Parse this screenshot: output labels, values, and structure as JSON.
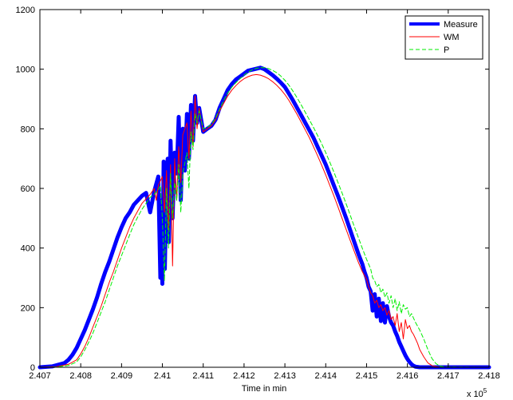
{
  "chart_data": {
    "type": "line",
    "title": "",
    "xlabel": "Time in min",
    "ylabel": "",
    "x_exponent_label": "x 10",
    "x_exponent_power": "5",
    "xlim": [
      2.407,
      2.418
    ],
    "ylim": [
      0,
      1200
    ],
    "x_ticks": [
      2.407,
      2.408,
      2.409,
      2.41,
      2.411,
      2.412,
      2.413,
      2.414,
      2.415,
      2.416,
      2.417,
      2.418
    ],
    "x_tick_labels": [
      "2.407",
      "2.408",
      "2.409",
      "2.41",
      "2.411",
      "2.412",
      "2.413",
      "2.414",
      "2.415",
      "2.416",
      "2.417",
      "2.418"
    ],
    "y_ticks": [
      0,
      200,
      400,
      600,
      800,
      1000,
      1200
    ],
    "y_tick_labels": [
      "0",
      "200",
      "400",
      "600",
      "800",
      "1000",
      "1200"
    ],
    "grid": false,
    "legend_position": "top-right",
    "series": [
      {
        "name": "Measure",
        "color": "#0000ff",
        "style": "solid",
        "x": [
          2.407,
          2.4073,
          2.4076,
          2.4077,
          2.4078,
          2.4079,
          2.408,
          2.4081,
          2.4082,
          2.4083,
          2.4084,
          2.4085,
          2.4086,
          2.4087,
          2.4088,
          2.4089,
          2.409,
          2.4091,
          2.4092,
          2.4093,
          2.4094,
          2.4095,
          2.4096,
          2.4097,
          2.4098,
          2.4099,
          2.40995,
          2.40998,
          2.41,
          2.41003,
          2.41006,
          2.4101,
          2.41013,
          2.41016,
          2.4102,
          2.41025,
          2.4103,
          2.41035,
          2.4104,
          2.41045,
          2.4105,
          2.41055,
          2.4106,
          2.41065,
          2.4107,
          2.41075,
          2.4108,
          2.41085,
          2.4109,
          2.411,
          2.4111,
          2.4112,
          2.4113,
          2.4114,
          2.4115,
          2.4116,
          2.4117,
          2.4118,
          2.4119,
          2.412,
          2.4121,
          2.41225,
          2.4124,
          2.4125,
          2.4126,
          2.4127,
          2.4128,
          2.4129,
          2.413,
          2.4131,
          2.4132,
          2.4133,
          2.4134,
          2.4135,
          2.4136,
          2.4137,
          2.4138,
          2.4139,
          2.414,
          2.4141,
          2.4142,
          2.4143,
          2.4144,
          2.4145,
          2.4146,
          2.4147,
          2.4148,
          2.4149,
          2.41495,
          2.415,
          2.41505,
          2.4151,
          2.41515,
          2.4152,
          2.41525,
          2.4153,
          2.41535,
          2.4154,
          2.41545,
          2.4155,
          2.41555,
          2.4156,
          2.41565,
          2.4157,
          2.41575,
          2.4158,
          2.41585,
          2.4159,
          2.41595,
          2.416,
          2.41605,
          2.4161,
          2.41615,
          2.4162,
          2.41625,
          2.4163,
          2.41635,
          2.4164,
          2.41645,
          2.4165,
          2.4166,
          2.4167,
          2.4168,
          2.418
        ],
        "y": [
          0,
          3,
          14,
          25,
          42,
          65,
          95,
          125,
          160,
          195,
          235,
          280,
          320,
          355,
          395,
          435,
          470,
          500,
          520,
          545,
          560,
          575,
          585,
          520,
          590,
          640,
          300,
          560,
          280,
          690,
          330,
          640,
          700,
          420,
          760,
          500,
          720,
          650,
          840,
          560,
          800,
          660,
          850,
          700,
          880,
          760,
          910,
          820,
          870,
          790,
          800,
          810,
          830,
          870,
          900,
          930,
          950,
          965,
          975,
          985,
          995,
          1000,
          1005,
          1000,
          990,
          980,
          968,
          955,
          940,
          918,
          895,
          870,
          845,
          820,
          795,
          770,
          740,
          710,
          680,
          645,
          610,
          575,
          538,
          500,
          460,
          420,
          380,
          345,
          320,
          300,
          270,
          255,
          190,
          245,
          170,
          230,
          155,
          215,
          150,
          205,
          170,
          150,
          140,
          120,
          105,
          85,
          70,
          55,
          40,
          28,
          18,
          10,
          5,
          2,
          1,
          0,
          0,
          0,
          0,
          0,
          0,
          0,
          0,
          0
        ],
        "width": 5
      },
      {
        "name": "WM",
        "color": "#ff0000",
        "style": "solid",
        "x": [
          2.407,
          2.4074,
          2.4077,
          2.4079,
          2.408,
          2.4081,
          2.4082,
          2.4083,
          2.4084,
          2.4085,
          2.4086,
          2.4087,
          2.4088,
          2.4089,
          2.409,
          2.4091,
          2.4092,
          2.4093,
          2.4094,
          2.4095,
          2.4096,
          2.4097,
          2.4098,
          2.40985,
          2.4099,
          2.41,
          2.41005,
          2.4101,
          2.41015,
          2.4102,
          2.41025,
          2.4103,
          2.41035,
          2.4104,
          2.41045,
          2.4105,
          2.4106,
          2.41065,
          2.4107,
          2.41075,
          2.4108,
          2.41085,
          2.4109,
          2.411,
          2.4111,
          2.4112,
          2.4113,
          2.4114,
          2.4115,
          2.4116,
          2.4117,
          2.4118,
          2.4119,
          2.412,
          2.4121,
          2.4122,
          2.4123,
          2.4124,
          2.4125,
          2.4126,
          2.4127,
          2.4128,
          2.4129,
          2.413,
          2.4131,
          2.4132,
          2.4133,
          2.4134,
          2.4135,
          2.4136,
          2.4137,
          2.4138,
          2.4139,
          2.414,
          2.4141,
          2.4142,
          2.4143,
          2.4144,
          2.4145,
          2.4146,
          2.4147,
          2.4148,
          2.4149,
          2.415,
          2.41505,
          2.4151,
          2.41515,
          2.4152,
          2.41525,
          2.4153,
          2.41535,
          2.4154,
          2.41545,
          2.4155,
          2.41555,
          2.4156,
          2.41565,
          2.4157,
          2.41575,
          2.4158,
          2.41585,
          2.4159,
          2.41595,
          2.416,
          2.41605,
          2.4161,
          2.41615,
          2.4162,
          2.41625,
          2.4163,
          2.4164,
          2.4165,
          2.4166,
          2.4167,
          2.4168,
          2.418
        ],
        "y": [
          0,
          2,
          10,
          25,
          45,
          70,
          100,
          135,
          170,
          205,
          245,
          285,
          320,
          360,
          400,
          435,
          470,
          500,
          525,
          550,
          565,
          580,
          600,
          560,
          610,
          640,
          520,
          660,
          460,
          680,
          340,
          700,
          560,
          740,
          620,
          780,
          820,
          700,
          860,
          740,
          910,
          800,
          870,
          790,
          800,
          810,
          830,
          860,
          885,
          910,
          930,
          945,
          958,
          968,
          975,
          980,
          982,
          980,
          975,
          968,
          958,
          946,
          932,
          915,
          895,
          872,
          848,
          822,
          796,
          770,
          740,
          710,
          678,
          645,
          610,
          575,
          538,
          500,
          462,
          425,
          388,
          352,
          320,
          295,
          270,
          250,
          240,
          215,
          225,
          200,
          210,
          190,
          200,
          175,
          190,
          160,
          170,
          140,
          180,
          120,
          150,
          95,
          160,
          130,
          140,
          120,
          110,
          95,
          80,
          60,
          35,
          15,
          6,
          2,
          0,
          0
        ],
        "width": 1
      },
      {
        "name": "P",
        "color": "#00ee00",
        "style": "dashed",
        "x": [
          2.407,
          2.4074,
          2.4077,
          2.4079,
          2.408,
          2.4081,
          2.4082,
          2.4083,
          2.4084,
          2.4085,
          2.4086,
          2.4087,
          2.4088,
          2.4089,
          2.409,
          2.4091,
          2.4092,
          2.4093,
          2.4094,
          2.4095,
          2.4096,
          2.4097,
          2.4098,
          2.4099,
          2.40995,
          2.41,
          2.41005,
          2.4101,
          2.41015,
          2.4102,
          2.41025,
          2.4103,
          2.41035,
          2.4104,
          2.41045,
          2.4105,
          2.4106,
          2.41065,
          2.4107,
          2.41075,
          2.4108,
          2.41085,
          2.4109,
          2.411,
          2.4111,
          2.4112,
          2.4113,
          2.4114,
          2.4115,
          2.4116,
          2.4117,
          2.4118,
          2.4119,
          2.412,
          2.4121,
          2.4122,
          2.4123,
          2.4124,
          2.4125,
          2.4126,
          2.4127,
          2.4128,
          2.4129,
          2.413,
          2.4131,
          2.4132,
          2.4133,
          2.4134,
          2.4135,
          2.4136,
          2.4137,
          2.4138,
          2.4139,
          2.414,
          2.4141,
          2.4142,
          2.4143,
          2.4144,
          2.4145,
          2.4146,
          2.4147,
          2.4148,
          2.4149,
          2.415,
          2.4151,
          2.41515,
          2.4152,
          2.41525,
          2.4153,
          2.41535,
          2.4154,
          2.41545,
          2.4155,
          2.41555,
          2.4156,
          2.41565,
          2.4157,
          2.41575,
          2.4158,
          2.41585,
          2.4159,
          2.41595,
          2.416,
          2.41605,
          2.4161,
          2.41615,
          2.4162,
          2.4163,
          2.4164,
          2.4165,
          2.4166,
          2.4167,
          2.4168,
          2.4169,
          2.418
        ],
        "y": [
          0,
          1,
          6,
          18,
          35,
          58,
          85,
          115,
          150,
          185,
          220,
          260,
          300,
          340,
          375,
          410,
          445,
          478,
          505,
          530,
          550,
          570,
          580,
          595,
          610,
          500,
          290,
          600,
          400,
          650,
          500,
          620,
          560,
          680,
          520,
          650,
          720,
          600,
          790,
          730,
          850,
          820,
          860,
          800,
          805,
          815,
          835,
          865,
          895,
          920,
          940,
          955,
          968,
          980,
          990,
          998,
          1003,
          1005,
          1005,
          1002,
          996,
          988,
          977,
          963,
          946,
          926,
          904,
          880,
          855,
          830,
          805,
          778,
          750,
          720,
          688,
          655,
          620,
          585,
          548,
          510,
          472,
          435,
          398,
          362,
          330,
          300,
          290,
          270,
          278,
          250,
          262,
          235,
          250,
          215,
          240,
          200,
          230,
          190,
          220,
          180,
          210,
          195,
          200,
          170,
          180,
          165,
          150,
          125,
          95,
          60,
          30,
          12,
          4,
          1,
          0
        ],
        "width": 1
      }
    ]
  }
}
